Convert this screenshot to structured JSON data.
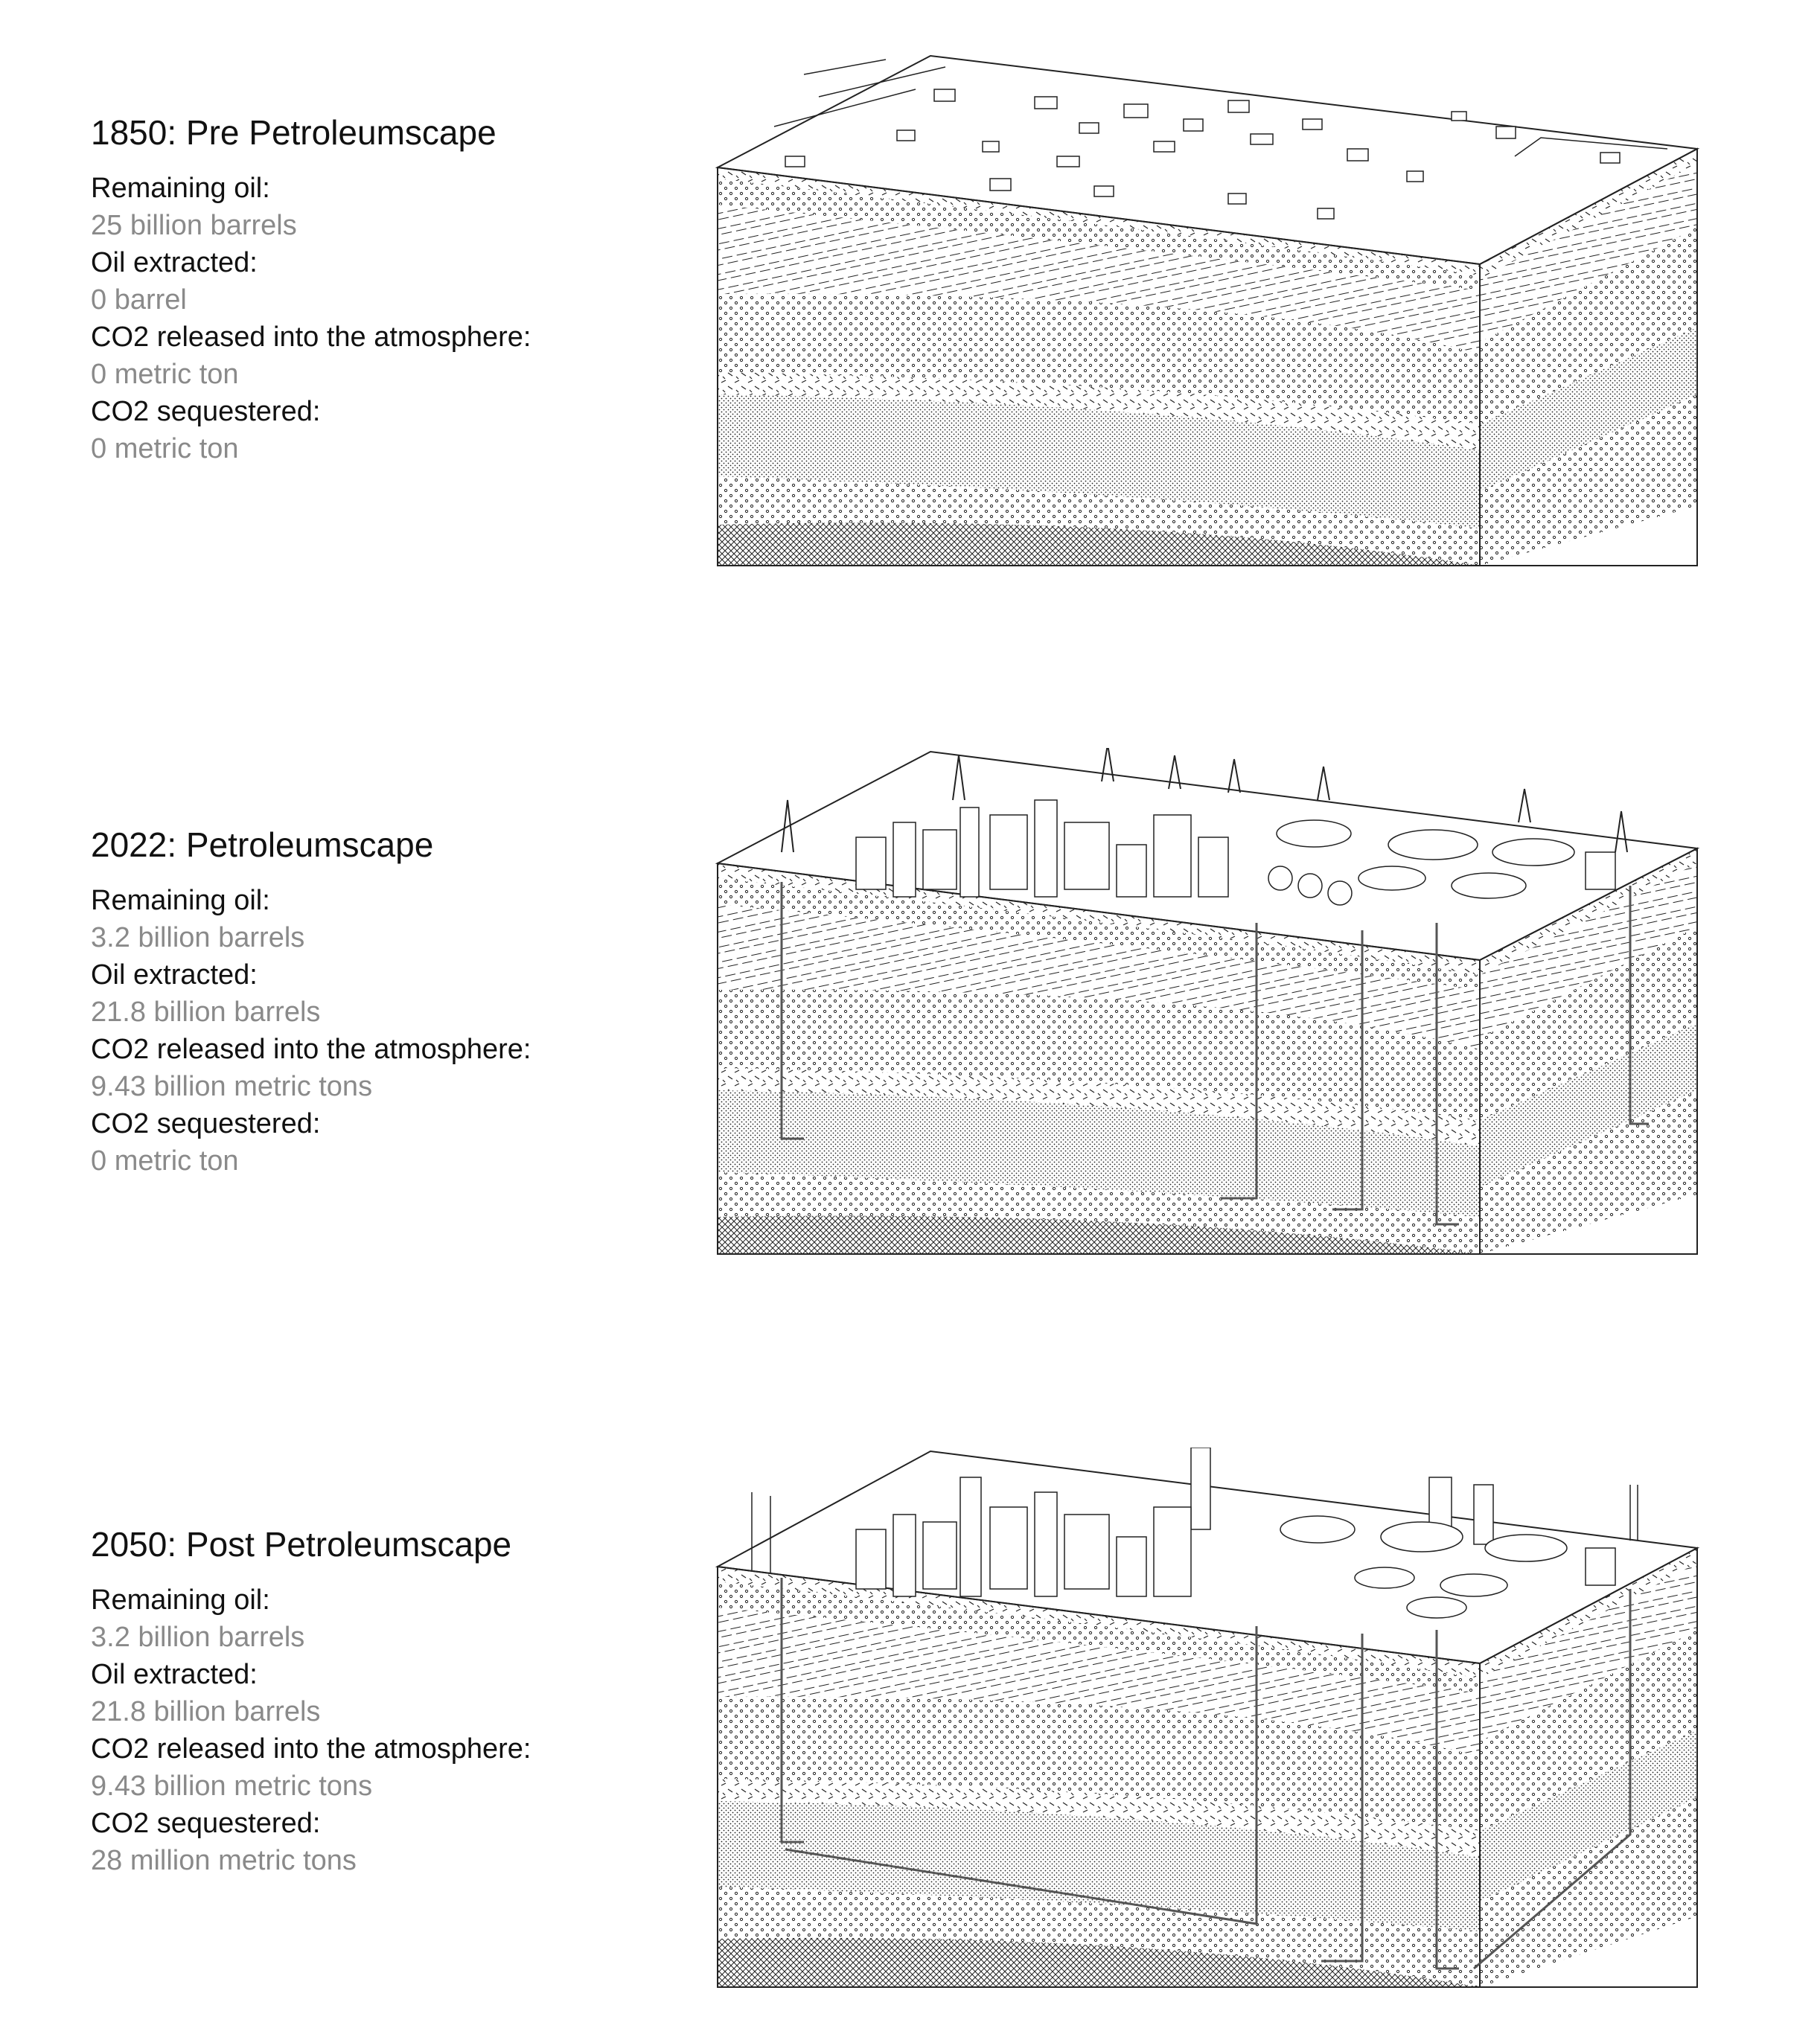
{
  "scenes": [
    {
      "title": "1850: Pre Petroleumscape",
      "stats": [
        {
          "label": "Remaining oil:",
          "value": "25 billion barrels"
        },
        {
          "label": "Oil extracted:",
          "value": "0 barrel"
        },
        {
          "label": "CO2 released into the atmosphere:",
          "value": "0 metric ton"
        },
        {
          "label": "CO2 sequestered:",
          "value": "0 metric ton"
        }
      ],
      "surface": "village"
    },
    {
      "title": "2022: Petroleumscape",
      "stats": [
        {
          "label": "Remaining oil:",
          "value": "3.2 billion barrels"
        },
        {
          "label": "Oil extracted:",
          "value": "21.8 billion barrels"
        },
        {
          "label": "CO2 released into the atmosphere:",
          "value": "9.43 billion metric tons"
        },
        {
          "label": "CO2 sequestered:",
          "value": "0 metric ton"
        }
      ],
      "surface": "refinery"
    },
    {
      "title": "2050: Post Petroleumscape",
      "stats": [
        {
          "label": "Remaining oil:",
          "value": "3.2 billion barrels"
        },
        {
          "label": "Oil extracted:",
          "value": "21.8 billion barrels"
        },
        {
          "label": "CO2 released into the atmosphere:",
          "value": "9.43 billion metric tons"
        },
        {
          "label": "CO2 sequestered:",
          "value": "28 million metric tons"
        }
      ],
      "surface": "post-refinery"
    }
  ],
  "colors": {
    "text": "#111111",
    "muted": "#8a8a8a",
    "line": "#222222",
    "background": "#ffffff"
  }
}
